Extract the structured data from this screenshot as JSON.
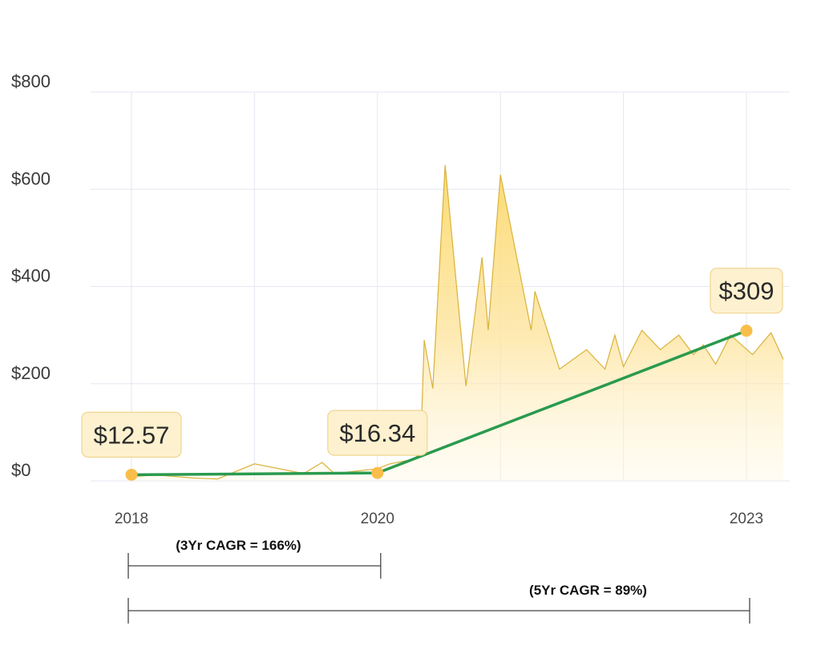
{
  "chart_data": {
    "type": "area",
    "title": "",
    "xlabel": "",
    "ylabel": "",
    "ylim": [
      0,
      800
    ],
    "xlim": [
      2018,
      2023.3
    ],
    "y_ticks": [
      {
        "value": 0,
        "label": "$0"
      },
      {
        "value": 200,
        "label": "$200"
      },
      {
        "value": 400,
        "label": "$400"
      },
      {
        "value": 600,
        "label": "$600"
      },
      {
        "value": 800,
        "label": "$800"
      }
    ],
    "x_ticks": [
      {
        "value": 2018,
        "label": "2018"
      },
      {
        "value": 2020,
        "label": "2020"
      },
      {
        "value": 2023,
        "label": "2023"
      }
    ],
    "vertical_grid_x": [
      2018,
      2019,
      2020,
      2021,
      2022,
      2023
    ],
    "grid": true,
    "colors": {
      "area_fill": "#fcd96b",
      "area_stroke": "#d9b23a",
      "trend_line": "#2a9a4e",
      "marker": "#f9be4a",
      "callout_fill": "#fdf1cf",
      "callout_stroke": "#f0d590",
      "grid": "#e6e6f2"
    },
    "series": [
      {
        "kind": "area",
        "x": [
          2017.96,
          2018.2,
          2018.5,
          2018.7,
          2019.0,
          2019.4,
          2019.55,
          2019.65,
          2020.0,
          2020.1,
          2020.3,
          2020.35,
          2020.38,
          2020.45,
          2020.55,
          2020.72,
          2020.85,
          2020.9,
          2021.0,
          2021.25,
          2021.28,
          2021.48,
          2021.7,
          2021.85,
          2021.93,
          2022.0,
          2022.15,
          2022.3,
          2022.45,
          2022.57,
          2022.65,
          2022.75,
          2022.87,
          2023.05,
          2023.2,
          2023.3
        ],
        "y": [
          8,
          12,
          6,
          4,
          35,
          15,
          38,
          15,
          25,
          35,
          45,
          60,
          290,
          190,
          650,
          195,
          460,
          310,
          630,
          310,
          390,
          230,
          270,
          230,
          300,
          235,
          310,
          270,
          300,
          260,
          280,
          240,
          300,
          260,
          305,
          250
        ]
      },
      {
        "kind": "line",
        "name": "",
        "x": [
          2018,
          2020,
          2023
        ],
        "y": [
          12.57,
          16.34,
          309
        ]
      }
    ],
    "annotations": [
      {
        "x": 2018,
        "y": 12.57,
        "label": "$12.57"
      },
      {
        "x": 2020,
        "y": 16.34,
        "label": "$16.34"
      },
      {
        "x": 2023,
        "y": 309,
        "label": "$309"
      }
    ],
    "ranges": [
      {
        "x_start": 2018,
        "x_end": 2020,
        "label": "(3Yr CAGR = 166%)"
      },
      {
        "x_start": 2018,
        "x_end": 2023,
        "label": "(5Yr CAGR = 89%)"
      }
    ]
  }
}
